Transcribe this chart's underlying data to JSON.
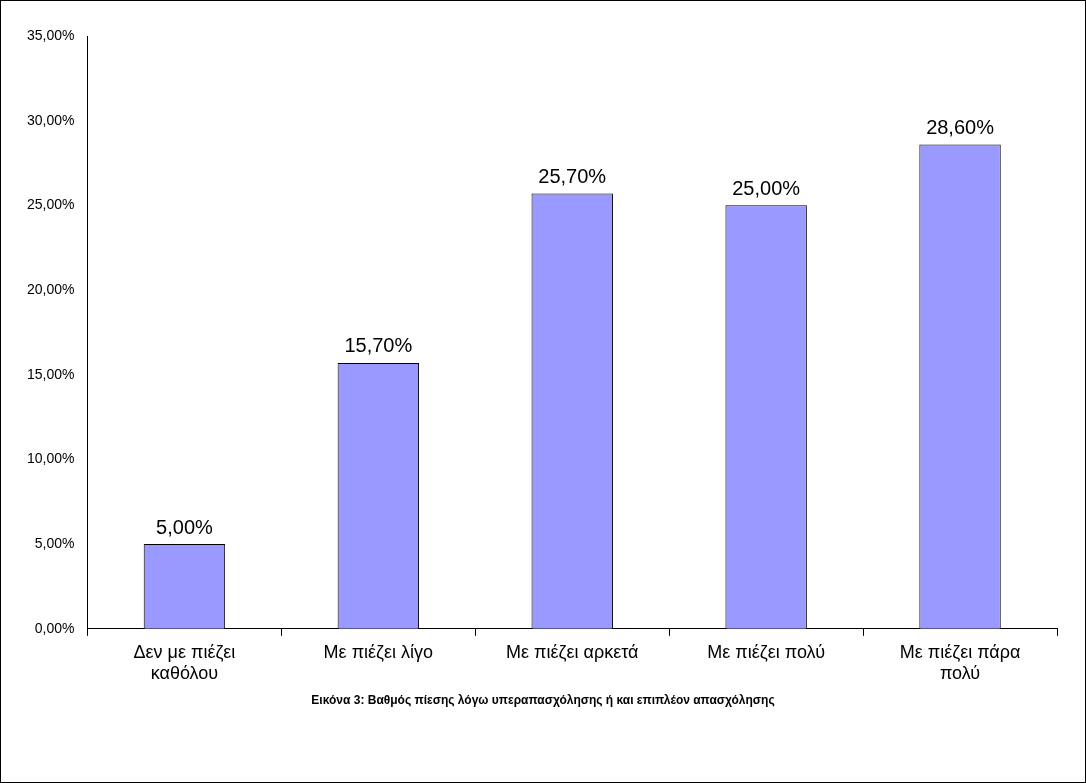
{
  "chart_data": {
    "type": "bar",
    "categories": [
      "Δεν με πιέζει καθόλου",
      "Με πιέζει λίγο",
      "Με πιέζει αρκετά",
      "Με πιέζει πολύ",
      "Με πιέζει πάρα πολύ"
    ],
    "values": [
      5,
      15.7,
      25.7,
      25,
      28.6
    ],
    "value_labels": [
      "5,00%",
      "15,70%",
      "25,70%",
      "25,00%",
      "28,60%"
    ],
    "color": "#9999ff",
    "ylim": [
      0,
      35
    ],
    "yticks": [
      {
        "value": 0,
        "label": "0,00%"
      },
      {
        "value": 5,
        "label": "5,00%"
      },
      {
        "value": 10,
        "label": "10,00%"
      },
      {
        "value": 15,
        "label": "15,00%"
      },
      {
        "value": 20,
        "label": "20,00%"
      },
      {
        "value": 25,
        "label": "25,00%"
      },
      {
        "value": 30,
        "label": "30,00%"
      },
      {
        "value": 35,
        "label": "35,00%"
      }
    ],
    "grid": false,
    "legend": false,
    "annotations": [
      "Εικόνα 3: Βαθμός πίεσης λόγω υπεραπασχόλησης ή και επιπλέον απασχόλησης"
    ]
  }
}
